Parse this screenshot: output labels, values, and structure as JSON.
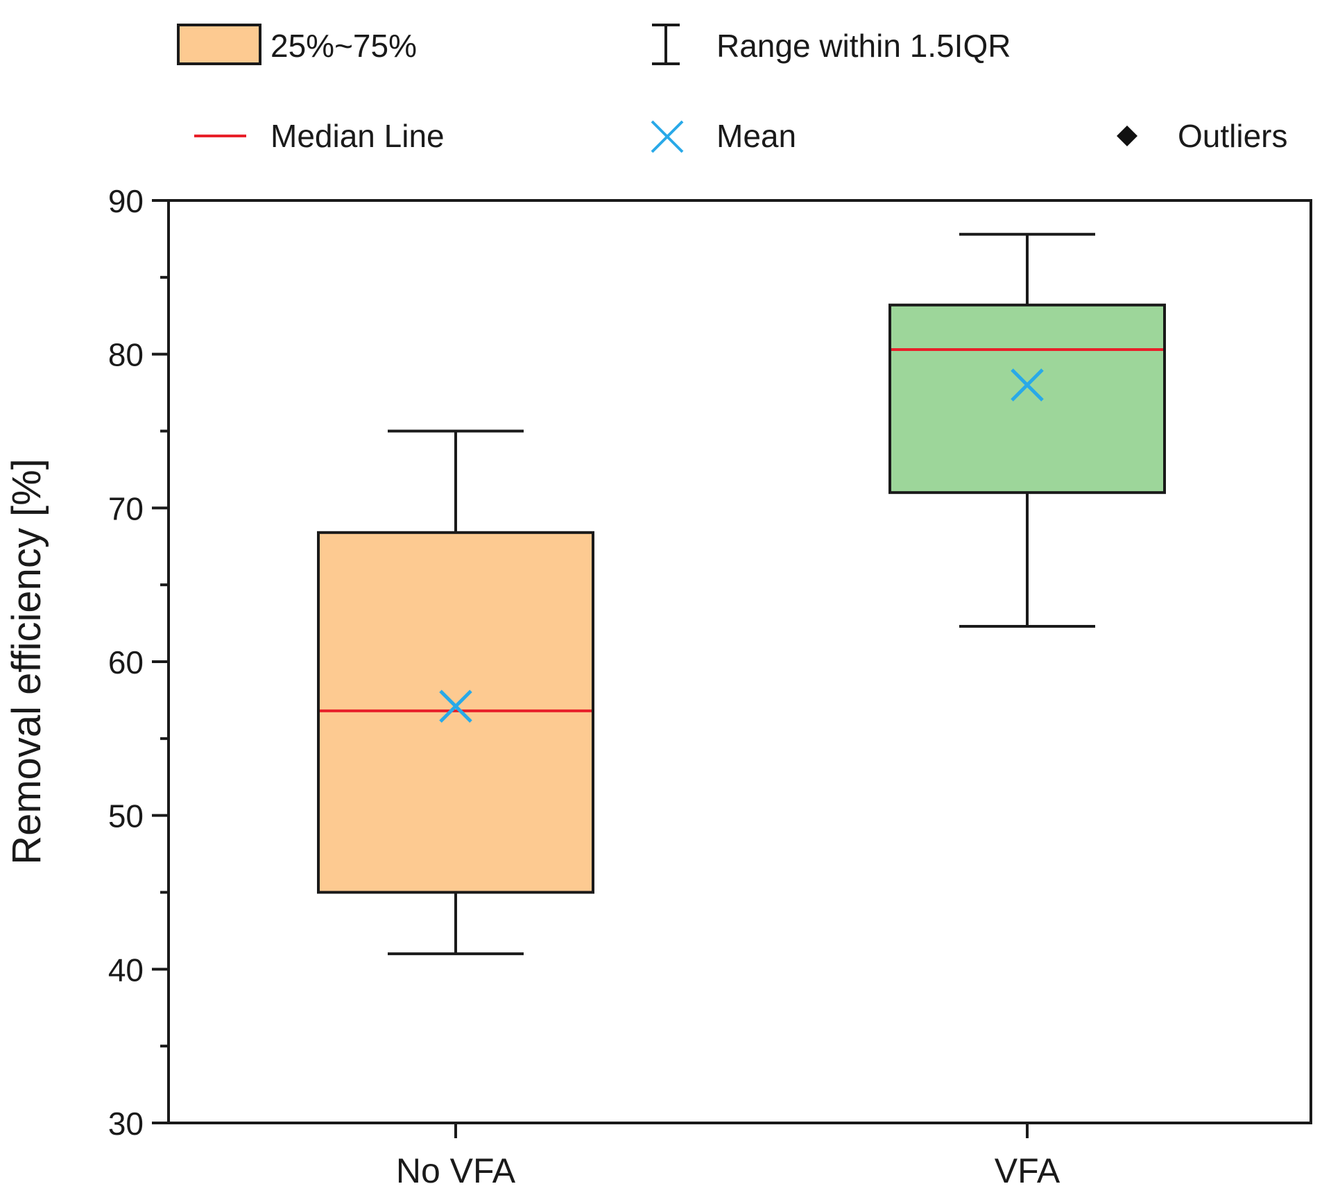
{
  "chart_data": {
    "type": "box",
    "title": "",
    "xlabel": "",
    "ylabel": "Removal efficiency [%]",
    "ylim": [
      30,
      90
    ],
    "yticks": [
      30,
      40,
      50,
      60,
      70,
      80,
      90
    ],
    "y_minor_step": 5,
    "grid": false,
    "categories": [
      "No VFA",
      "VFA"
    ],
    "boxes": [
      {
        "name": "No VFA",
        "whisker_low": 41,
        "q1": 45,
        "median": 56.8,
        "q3": 68.4,
        "whisker_high": 75,
        "mean": 57.1,
        "fill": "#FDCA91"
      },
      {
        "name": "VFA",
        "whisker_low": 62.3,
        "q1": 71,
        "median": 80.3,
        "q3": 83.2,
        "whisker_high": 87.8,
        "mean": 78,
        "fill": "#9DD69A"
      }
    ],
    "legend": {
      "placement": "top",
      "items": [
        {
          "key": "box",
          "label": "25%~75%"
        },
        {
          "key": "range",
          "label": "Range within 1.5IQR"
        },
        {
          "key": "median",
          "label": "Median Line"
        },
        {
          "key": "mean",
          "label": "Mean"
        },
        {
          "key": "outliers",
          "label": "Outliers"
        }
      ]
    },
    "colors": {
      "median": "#E8202A",
      "mean": "#29A9E8",
      "axis": "#1a1a1a",
      "legend_box_fill": "#FDCA91"
    }
  }
}
